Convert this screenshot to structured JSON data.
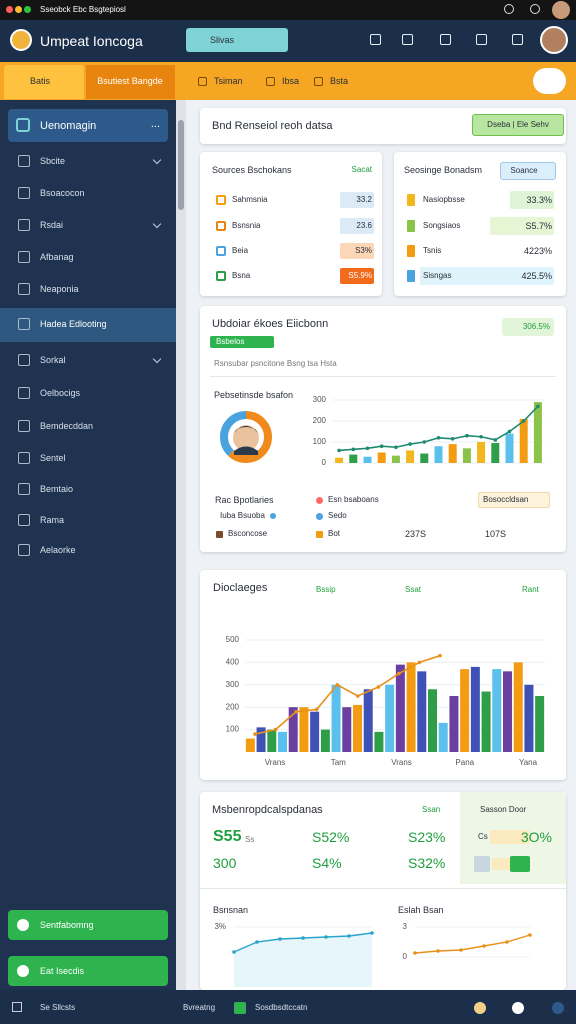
{
  "window": {
    "title": "Sseobck Ebc Bsgtepiosl"
  },
  "header": {
    "app_name": "Umpeat Ioncoga",
    "search": "Slivas"
  },
  "tabs": [
    "Batis",
    "Bsutiest Bangde",
    "Tsiman",
    "Ibsa",
    "Bsta"
  ],
  "sidebar": {
    "profile": "Uenomagin",
    "more": "...",
    "items": [
      "Sbcite",
      "Bsoacocon",
      "Rsdai",
      "Afbanag",
      "Neaponia",
      "Hadea Edlooting",
      "Sorkal",
      "Oelbocigs",
      "Bemdecddan",
      "Sentel",
      "Bemtaio",
      "Rama",
      "Aelaorke"
    ],
    "buttons": [
      "Sentfabomng",
      "Eat Isecdis"
    ]
  },
  "banner": {
    "title": "Bnd Renseiol reoh datsa",
    "button": "Dseba | Ele Sehv"
  },
  "sources": {
    "title": "Sources Bschokans",
    "link": "Sacat",
    "rows": [
      [
        "Sahmsnia",
        "33.2"
      ],
      [
        "Bsnsnia",
        "23.6"
      ],
      [
        "Beia",
        "S3%"
      ],
      [
        "Bsna",
        "S5.9%"
      ]
    ]
  },
  "summary": {
    "title": "Seosinge Bonadsm",
    "button": "Soance",
    "rows": [
      [
        "Nasiopbsse",
        "33.3%"
      ],
      [
        "Songsiaos",
        "S5.7%"
      ],
      [
        "Tsnis",
        "4223%"
      ],
      [
        "Sisngas",
        "425.5%"
      ]
    ]
  },
  "overview": {
    "title": "Ubdoiar ékoes Eiicbonn",
    "badge": "Bsbelos",
    "stat": "306.5%",
    "subtitle": "Rsnsubar psncitone Bsng tsa Hsta",
    "section": "Pebsetinsde bsafon",
    "donut": {
      "type": "pie",
      "values": [
        62,
        38
      ],
      "colors": [
        "#f08a1c",
        "#4aa3df"
      ]
    },
    "chart": {
      "type": "bar",
      "ylim": [
        0,
        300
      ],
      "yticks": [
        0,
        100,
        200,
        300
      ],
      "values": [
        25,
        40,
        30,
        50,
        35,
        60,
        45,
        80,
        90,
        70,
        100,
        95,
        140,
        210,
        290
      ],
      "colors": [
        "#f3b61f",
        "#2e9e48",
        "#5bc0eb",
        "#f39c12",
        "#8bc34a"
      ],
      "line": [
        60,
        65,
        70,
        80,
        75,
        90,
        100,
        120,
        115,
        130,
        125,
        110,
        150,
        200,
        270
      ],
      "line_color": "#1e8a6e"
    },
    "legend": {
      "title": "Rac Bpotlaries",
      "sub": "Iuba Bsuoba",
      "items": [
        "Esn bsaboans",
        "Sedo",
        "Bsconcose",
        "Bot"
      ],
      "values": [
        "237S",
        "107S"
      ],
      "dropdown": "Bosoccldsan"
    }
  },
  "volume": {
    "title": "Dioclaeges",
    "links": [
      "Bssip",
      "Ssat",
      "Rant"
    ],
    "chart": {
      "type": "bar",
      "ylim": [
        0,
        500
      ],
      "yticks": [
        100,
        200,
        300,
        400,
        500
      ],
      "categories": [
        "Vrans",
        "Tam",
        "Vrans",
        "Pana",
        "Yana"
      ],
      "values": [
        60,
        110,
        100,
        90,
        200,
        200,
        180,
        100,
        300,
        200,
        210,
        280,
        90,
        300,
        390,
        400,
        360,
        280,
        130,
        250,
        370,
        380,
        270,
        370,
        360,
        400,
        300,
        250
      ],
      "colors": [
        "#f39c12",
        "#3f51b5",
        "#2e9e48",
        "#5bc0eb",
        "#6a3fa0"
      ],
      "line": [
        80,
        100,
        180,
        190,
        300,
        250,
        290,
        350,
        400,
        430
      ],
      "line_color": "#e8901c"
    }
  },
  "metrics": {
    "title": "Msbenropdcalspdanas",
    "link": "Ssan",
    "unit": "Ss",
    "values": [
      [
        "S55",
        "S52%",
        "S23%"
      ],
      [
        "300",
        "S4%",
        "S32%"
      ]
    ],
    "panel": {
      "title": "Sasson Door",
      "label": "Cs",
      "value": "3O%"
    }
  },
  "trends": [
    {
      "title": "Bsnsnan",
      "type": "line",
      "ylim": [
        0,
        3
      ],
      "yticks": [
        {
          "value": 3,
          "label": "3%"
        }
      ],
      "values": [
        0.5,
        1.5,
        1.8,
        1.9,
        2.0,
        2.1,
        2.4
      ],
      "color": "#2aa5c9"
    },
    {
      "title": "Eslah Bsan",
      "type": "line",
      "ylim": [
        0,
        3
      ],
      "yticks": [
        0,
        3
      ],
      "values": [
        0.4,
        0.6,
        0.7,
        1.1,
        1.5,
        2.2
      ],
      "color": "#e8901c"
    }
  ],
  "footer": [
    "Se Sllcsts",
    "Bvreatng",
    "Sosdbsdtccatn"
  ]
}
